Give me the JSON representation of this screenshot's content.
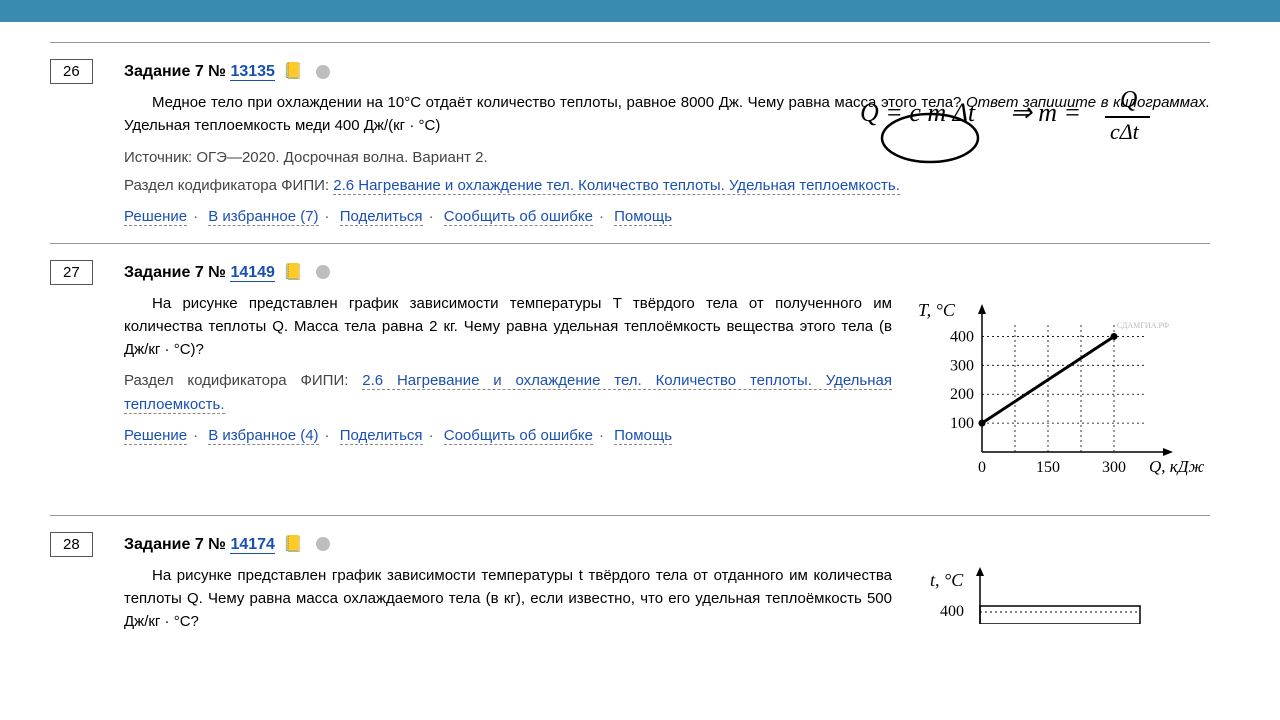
{
  "colors": {
    "topbar": "#3a8bb0",
    "link": "#1a4fb3",
    "dot": "#bdbdbd",
    "folder": "#c77a2e"
  },
  "tasks": [
    {
      "num": "26",
      "title_prefix": "Задание 7 № ",
      "id": "13135",
      "text": "Медное тело при охлаждении на 10°C отдаёт количество теплоты, равное 8000 Дж. Чему равна масса этого тела?",
      "ital": "Ответ запишите в килограммах.",
      "text_tail": " Удельная теплоемкость меди 400 Дж/(кг · °C)",
      "source_label": "Источник: ",
      "source": "ОГЭ—2020. Досрочная волна. Вариант 2.",
      "fipi_label": "Раздел кодификатора ФИПИ: ",
      "fipi": "2.6 Нагревание и охлаждение тел. Количество теплоты. Удельная теплоемкость.",
      "actions": {
        "solution": "Решение",
        "fav": "В избранное (7)",
        "share": "Поделиться",
        "report": "Сообщить об ошибке",
        "help": "Помощь"
      },
      "annotation": "Q = c m Δt  ⇒  m = Q / cΔt"
    },
    {
      "num": "27",
      "title_prefix": "Задание 7 № ",
      "id": "14149",
      "text": "На рисунке представлен график зависимости температуры T твёрдого тела от полученного им количества теплоты Q. Масса тела равна 2 кг. Чему равна удельная теплоёмкость вещества этого тела (в Дж/кг · °C)?",
      "fipi_label": "Раздел кодификатора ФИПИ: ",
      "fipi": "2.6 Нагревание и охлаждение тел. Количество теплоты. Удельная теплоемкость.",
      "actions": {
        "solution": "Решение",
        "fav": "В избранное (4)",
        "share": "Поделиться",
        "report": "Сообщить об ошибке",
        "help": "Помощь"
      },
      "chart": {
        "type": "line",
        "y_label": "T, °C",
        "x_label": "Q, кДж",
        "y_ticks": [
          100,
          200,
          300,
          400
        ],
        "x_ticks": [
          0,
          150,
          300
        ],
        "xlim": [
          0,
          375
        ],
        "ylim": [
          0,
          450
        ],
        "points": [
          [
            0,
            100
          ],
          [
            300,
            400
          ]
        ],
        "line_color": "#000",
        "line_width": 3,
        "grid_color": "#000",
        "grid_dash": "2,3",
        "watermark": "СДАМГИА.РФ"
      }
    },
    {
      "num": "28",
      "title_prefix": "Задание 7 № ",
      "id": "14174",
      "text": "На рисунке представлен график зависимости температуры t твёрдого тела от отданного им количества теплоты Q. Чему равна масса охлаждаемого тела (в кг), если известно, что его удельная теплоёмкость 500 Дж/кг · °C?",
      "chart": {
        "type": "line",
        "y_label": "t, °C",
        "y_ticks": [
          400
        ]
      }
    }
  ]
}
